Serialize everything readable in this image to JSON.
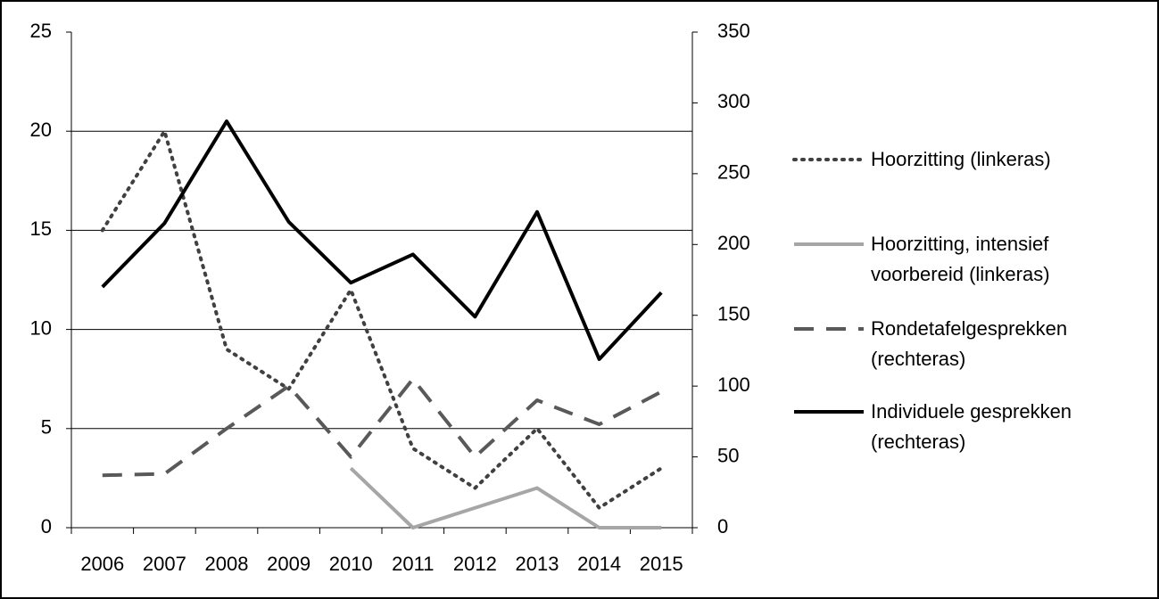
{
  "chart_data": {
    "type": "line",
    "categories": [
      "2006",
      "2007",
      "2008",
      "2009",
      "2010",
      "2011",
      "2012",
      "2013",
      "2014",
      "2015"
    ],
    "ylim": [
      0,
      25
    ],
    "yticks": [
      0,
      5,
      10,
      15,
      20,
      25
    ],
    "y2lim": [
      0,
      350
    ],
    "y2ticks": [
      0,
      50,
      100,
      150,
      200,
      250,
      300,
      350
    ],
    "grid": true,
    "series": [
      {
        "name": "Hoorzitting (linkeras)",
        "color": "#404040",
        "style": "dotted",
        "axis": "y",
        "values": [
          15,
          20,
          9,
          7,
          12,
          4,
          2,
          5,
          1,
          3
        ]
      },
      {
        "name": "Hoorzitting, intensief voorbereid (linkeras)",
        "color": "#a6a6a6",
        "style": "solid",
        "axis": "y",
        "values": [
          null,
          null,
          null,
          null,
          3,
          0,
          1,
          2,
          0,
          0
        ]
      },
      {
        "name": "Rondetafelgesprekken (rechteras)",
        "color": "#595959",
        "style": "dashed",
        "axis": "y2",
        "values": [
          37,
          38,
          70,
          100,
          50,
          105,
          50,
          90,
          73,
          96
        ]
      },
      {
        "name": "Individuele gesprekken (rechteras)",
        "color": "#000000",
        "style": "solid",
        "axis": "y2",
        "values": [
          170,
          215,
          287,
          216,
          173,
          193,
          149,
          223,
          119,
          166
        ]
      }
    ]
  }
}
